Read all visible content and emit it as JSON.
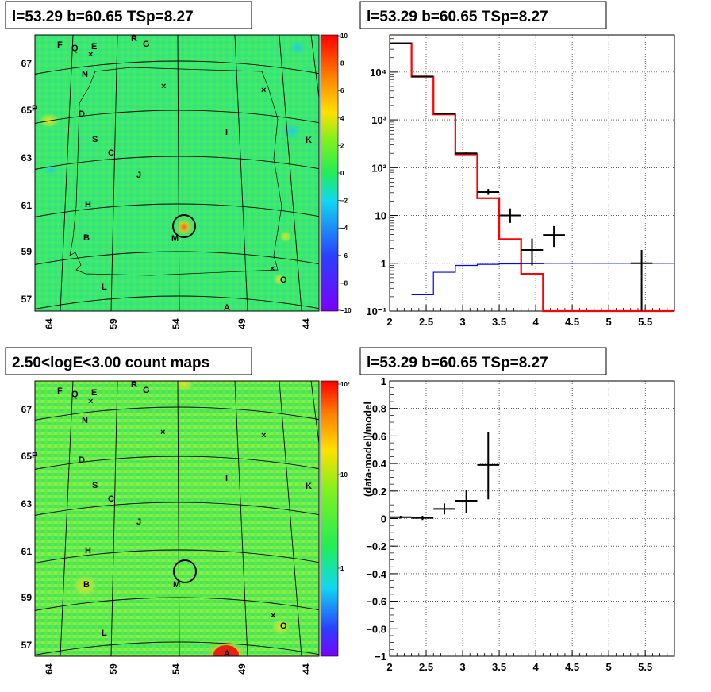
{
  "panels": {
    "tl_title": "l=53.29 b=60.65 TSp=8.27",
    "tr_title": "l=53.29 b=60.65 TSp=8.27",
    "bl_title": "2.50<logE<3.00 count maps",
    "br_title": "l=53.29 b=60.65 TSp=8.27"
  },
  "maps": {
    "lon_ticks": [
      "64",
      "59",
      "54",
      "49",
      "44"
    ],
    "lat_ticks": [
      "67",
      "65",
      "63",
      "61",
      "59",
      "57"
    ],
    "labels_top": [
      "F",
      "Q",
      "E",
      "R",
      "G",
      "N",
      "D",
      "S",
      "C",
      "I",
      "K",
      "J",
      "H",
      "M",
      "B",
      "L",
      "O",
      "A",
      "P"
    ],
    "labels_bottom": [
      "F",
      "Q",
      "E",
      "R",
      "G",
      "N",
      "P",
      "D",
      "S",
      "C",
      "I",
      "K",
      "J",
      "H",
      "B",
      "M",
      "L",
      "O",
      "A"
    ],
    "residual_colorbar": [
      "10",
      "8",
      "6",
      "4",
      "2",
      "0",
      "−2",
      "−4",
      "−6",
      "−8",
      "−10"
    ],
    "count_colorbar": [
      "10²",
      "10",
      "1"
    ],
    "colors": {
      "background": "#3de872",
      "source_hot": "#ff5020",
      "residual_low": "#20d8e0"
    }
  },
  "chart_data": [
    {
      "type": "line",
      "title": "l=53.29 b=60.65 TSp=8.27",
      "xlabel": "",
      "ylabel": "",
      "xlim": [
        2,
        5.9
      ],
      "ylim": [
        0.1,
        60000
      ],
      "yscale": "log",
      "x_ticks": [
        "2",
        "2.5",
        "3",
        "3.5",
        "4",
        "4.5",
        "5",
        "5.5"
      ],
      "y_ticks": [
        "10⁻¹",
        "1",
        "10",
        "10²",
        "10³",
        "10⁴"
      ],
      "grid": true,
      "series": [
        {
          "style": "step",
          "color": "#ff0000",
          "bin_edges": [
            2.0,
            2.3,
            2.6,
            2.9,
            3.2,
            3.5,
            3.8,
            4.1,
            4.4,
            5.9
          ],
          "values": [
            40000,
            8000,
            1300,
            190,
            23,
            3.2,
            0.6,
            0.1,
            0.1
          ]
        },
        {
          "style": "step",
          "color": "#0000ff",
          "bin_edges": [
            2.3,
            2.6,
            2.9,
            3.2,
            3.5,
            3.8,
            4.1,
            5.9
          ],
          "values": [
            0.22,
            0.65,
            0.9,
            0.95,
            0.97,
            0.98,
            1.0
          ]
        },
        {
          "style": "errorbars",
          "color": "#000000",
          "x": [
            2.15,
            2.45,
            2.75,
            3.05,
            3.35,
            3.65,
            3.95,
            4.25,
            5.45
          ],
          "xerr": [
            0.15,
            0.15,
            0.15,
            0.15,
            0.15,
            0.15,
            0.15,
            0.15,
            0.15
          ],
          "y": [
            40000,
            8100,
            1350,
            200,
            31,
            10,
            1.9,
            3.9,
            1.0
          ],
          "ylow": [
            39500,
            8000,
            1310,
            190,
            27,
            7,
            0.9,
            2.2,
            0.1
          ],
          "yhigh": [
            40500,
            8200,
            1390,
            215,
            36,
            14,
            3.3,
            6.0,
            1.9
          ]
        }
      ]
    },
    {
      "type": "scatter",
      "title": "l=53.29 b=60.65 TSp=8.27",
      "xlabel": "",
      "ylabel": "(data-model)/model",
      "xlim": [
        2,
        5.9
      ],
      "ylim": [
        -1,
        1
      ],
      "x_ticks": [
        "2",
        "2.5",
        "3",
        "3.5",
        "4",
        "4.5",
        "5",
        "5.5"
      ],
      "y_ticks": [
        "−1",
        "−0.8",
        "−0.6",
        "−0.4",
        "−0.2",
        "0",
        "0.2",
        "0.4",
        "0.6",
        "0.8",
        "1"
      ],
      "grid": true,
      "series": [
        {
          "style": "errorbars",
          "color": "#000000",
          "x": [
            2.15,
            2.45,
            2.75,
            3.05,
            3.35
          ],
          "xerr": [
            0.15,
            0.15,
            0.15,
            0.15,
            0.15
          ],
          "y": [
            0.01,
            0.005,
            0.07,
            0.13,
            0.39
          ],
          "ylow": [
            0.0,
            -0.01,
            0.03,
            0.04,
            0.14
          ],
          "yhigh": [
            0.02,
            0.02,
            0.11,
            0.21,
            0.63
          ]
        }
      ]
    }
  ]
}
